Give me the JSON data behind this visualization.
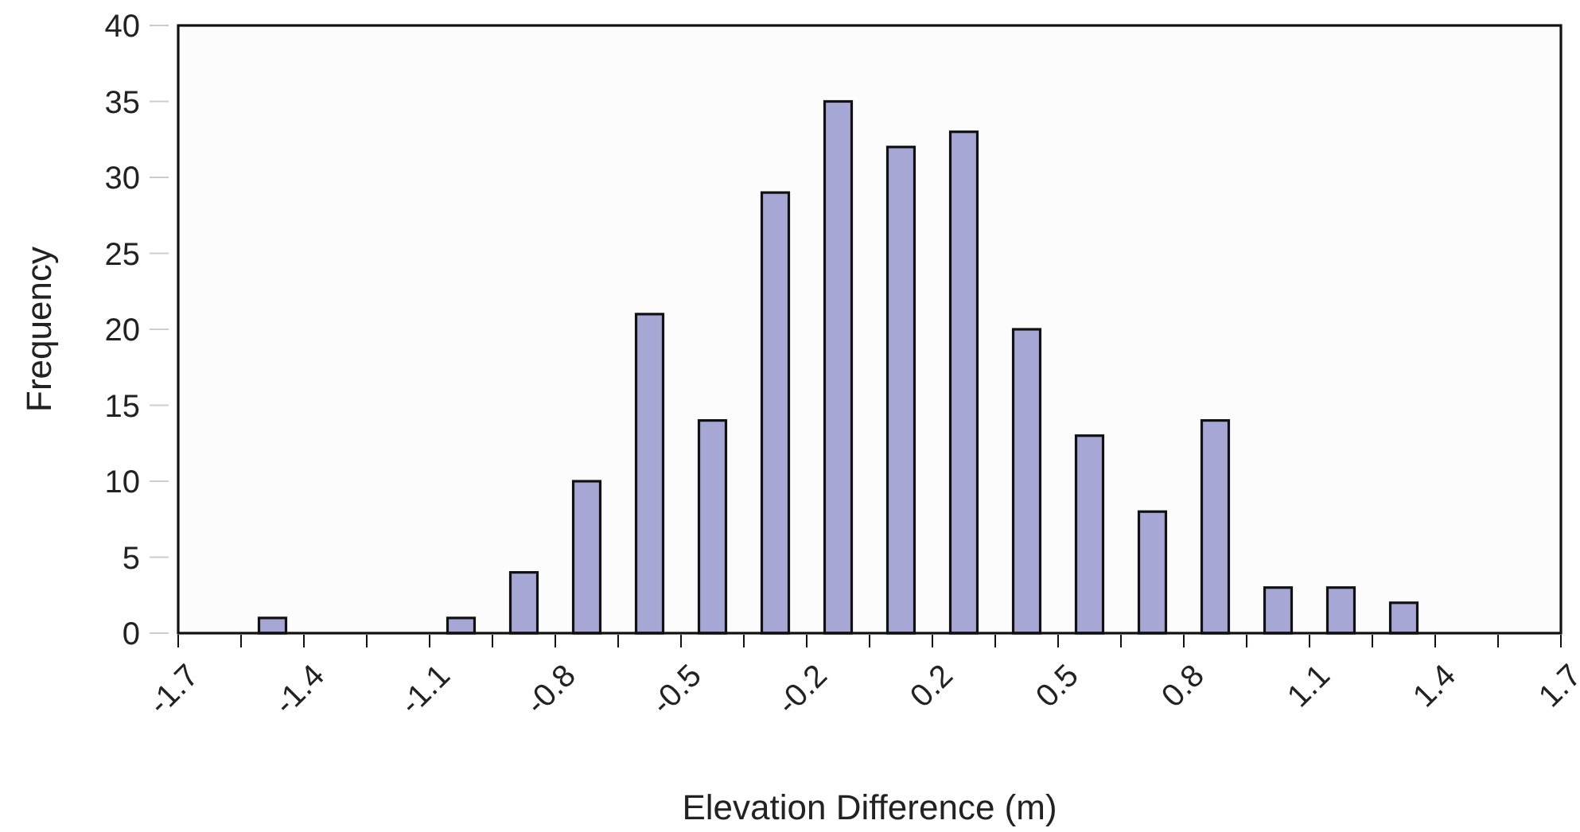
{
  "chart_data": {
    "type": "histogram",
    "xlabel": "Elevation Difference (m)",
    "ylabel": "Frequency",
    "color": "#a7a7d6",
    "bins": [
      -1.7,
      -1.5455,
      -1.3909,
      -1.2364,
      -1.0818,
      -0.9273,
      -0.7727,
      -0.6182,
      -0.4636,
      -0.3091,
      -0.1545,
      0,
      0.1545,
      0.3091,
      0.4636,
      0.6182,
      0.7727,
      0.9273,
      1.0818,
      1.2364,
      1.3909,
      1.5455,
      1.7
    ],
    "values": [
      0,
      1,
      0,
      0,
      1,
      4,
      10,
      21,
      14,
      29,
      35,
      32,
      33,
      20,
      13,
      8,
      14,
      3,
      3,
      2,
      0,
      0
    ],
    "xlim": [
      -1.7,
      1.7
    ],
    "xticks": [
      {
        "value": -1.7,
        "label": "-1.7"
      },
      {
        "value": -1.5455,
        "label": null
      },
      {
        "value": -1.3909,
        "label": "-1.4"
      },
      {
        "value": -1.2364,
        "label": null
      },
      {
        "value": -1.0818,
        "label": "-1.1"
      },
      {
        "value": -0.9273,
        "label": null
      },
      {
        "value": -0.7727,
        "label": "-0.8"
      },
      {
        "value": -0.6182,
        "label": null
      },
      {
        "value": -0.4636,
        "label": "-0.5"
      },
      {
        "value": -0.3091,
        "label": null
      },
      {
        "value": -0.1545,
        "label": "-0.2"
      },
      {
        "value": 0,
        "label": null
      },
      {
        "value": 0.1545,
        "label": "0.2"
      },
      {
        "value": 0.3091,
        "label": null
      },
      {
        "value": 0.4636,
        "label": "0.5"
      },
      {
        "value": 0.6182,
        "label": null
      },
      {
        "value": 0.7727,
        "label": "0.8"
      },
      {
        "value": 0.9273,
        "label": null
      },
      {
        "value": 1.0818,
        "label": "1.1"
      },
      {
        "value": 1.2364,
        "label": null
      },
      {
        "value": 1.3909,
        "label": "1.4"
      },
      {
        "value": 1.5455,
        "label": null
      },
      {
        "value": 1.7,
        "label": "1.7"
      }
    ],
    "ylim": [
      0,
      40
    ],
    "yticks": [
      0,
      5,
      10,
      15,
      20,
      25,
      30,
      35,
      40
    ],
    "grid": false
  }
}
